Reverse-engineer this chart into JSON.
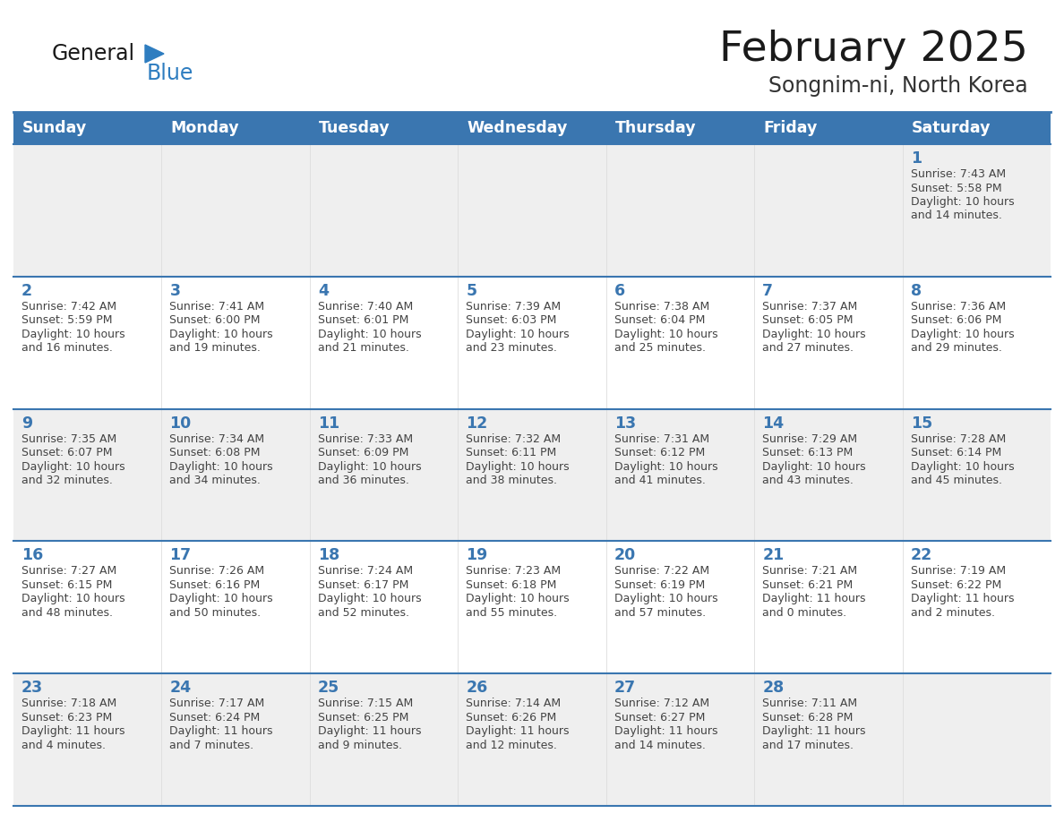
{
  "title": "February 2025",
  "subtitle": "Songnim-ni, North Korea",
  "days_of_week": [
    "Sunday",
    "Monday",
    "Tuesday",
    "Wednesday",
    "Thursday",
    "Friday",
    "Saturday"
  ],
  "header_bg": "#3A76B0",
  "header_text": "#FFFFFF",
  "row_bg": [
    "#EFEFEF",
    "#FFFFFF",
    "#EFEFEF",
    "#FFFFFF",
    "#EFEFEF"
  ],
  "day_number_color": "#3A76B0",
  "cell_text_color": "#444444",
  "border_color": "#3A76B0",
  "title_color": "#1a1a1a",
  "subtitle_color": "#333333",
  "logo_general_color": "#1a1a1a",
  "logo_blue_color": "#2E7DC0",
  "calendar_data": [
    [
      null,
      null,
      null,
      null,
      null,
      null,
      {
        "day": 1,
        "sunrise": "7:43 AM",
        "sunset": "5:58 PM",
        "daylight": "10 hours and 14 minutes."
      }
    ],
    [
      {
        "day": 2,
        "sunrise": "7:42 AM",
        "sunset": "5:59 PM",
        "daylight": "10 hours and 16 minutes."
      },
      {
        "day": 3,
        "sunrise": "7:41 AM",
        "sunset": "6:00 PM",
        "daylight": "10 hours and 19 minutes."
      },
      {
        "day": 4,
        "sunrise": "7:40 AM",
        "sunset": "6:01 PM",
        "daylight": "10 hours and 21 minutes."
      },
      {
        "day": 5,
        "sunrise": "7:39 AM",
        "sunset": "6:03 PM",
        "daylight": "10 hours and 23 minutes."
      },
      {
        "day": 6,
        "sunrise": "7:38 AM",
        "sunset": "6:04 PM",
        "daylight": "10 hours and 25 minutes."
      },
      {
        "day": 7,
        "sunrise": "7:37 AM",
        "sunset": "6:05 PM",
        "daylight": "10 hours and 27 minutes."
      },
      {
        "day": 8,
        "sunrise": "7:36 AM",
        "sunset": "6:06 PM",
        "daylight": "10 hours and 29 minutes."
      }
    ],
    [
      {
        "day": 9,
        "sunrise": "7:35 AM",
        "sunset": "6:07 PM",
        "daylight": "10 hours and 32 minutes."
      },
      {
        "day": 10,
        "sunrise": "7:34 AM",
        "sunset": "6:08 PM",
        "daylight": "10 hours and 34 minutes."
      },
      {
        "day": 11,
        "sunrise": "7:33 AM",
        "sunset": "6:09 PM",
        "daylight": "10 hours and 36 minutes."
      },
      {
        "day": 12,
        "sunrise": "7:32 AM",
        "sunset": "6:11 PM",
        "daylight": "10 hours and 38 minutes."
      },
      {
        "day": 13,
        "sunrise": "7:31 AM",
        "sunset": "6:12 PM",
        "daylight": "10 hours and 41 minutes."
      },
      {
        "day": 14,
        "sunrise": "7:29 AM",
        "sunset": "6:13 PM",
        "daylight": "10 hours and 43 minutes."
      },
      {
        "day": 15,
        "sunrise": "7:28 AM",
        "sunset": "6:14 PM",
        "daylight": "10 hours and 45 minutes."
      }
    ],
    [
      {
        "day": 16,
        "sunrise": "7:27 AM",
        "sunset": "6:15 PM",
        "daylight": "10 hours and 48 minutes."
      },
      {
        "day": 17,
        "sunrise": "7:26 AM",
        "sunset": "6:16 PM",
        "daylight": "10 hours and 50 minutes."
      },
      {
        "day": 18,
        "sunrise": "7:24 AM",
        "sunset": "6:17 PM",
        "daylight": "10 hours and 52 minutes."
      },
      {
        "day": 19,
        "sunrise": "7:23 AM",
        "sunset": "6:18 PM",
        "daylight": "10 hours and 55 minutes."
      },
      {
        "day": 20,
        "sunrise": "7:22 AM",
        "sunset": "6:19 PM",
        "daylight": "10 hours and 57 minutes."
      },
      {
        "day": 21,
        "sunrise": "7:21 AM",
        "sunset": "6:21 PM",
        "daylight": "11 hours and 0 minutes."
      },
      {
        "day": 22,
        "sunrise": "7:19 AM",
        "sunset": "6:22 PM",
        "daylight": "11 hours and 2 minutes."
      }
    ],
    [
      {
        "day": 23,
        "sunrise": "7:18 AM",
        "sunset": "6:23 PM",
        "daylight": "11 hours and 4 minutes."
      },
      {
        "day": 24,
        "sunrise": "7:17 AM",
        "sunset": "6:24 PM",
        "daylight": "11 hours and 7 minutes."
      },
      {
        "day": 25,
        "sunrise": "7:15 AM",
        "sunset": "6:25 PM",
        "daylight": "11 hours and 9 minutes."
      },
      {
        "day": 26,
        "sunrise": "7:14 AM",
        "sunset": "6:26 PM",
        "daylight": "11 hours and 12 minutes."
      },
      {
        "day": 27,
        "sunrise": "7:12 AM",
        "sunset": "6:27 PM",
        "daylight": "11 hours and 14 minutes."
      },
      {
        "day": 28,
        "sunrise": "7:11 AM",
        "sunset": "6:28 PM",
        "daylight": "11 hours and 17 minutes."
      },
      null
    ]
  ]
}
